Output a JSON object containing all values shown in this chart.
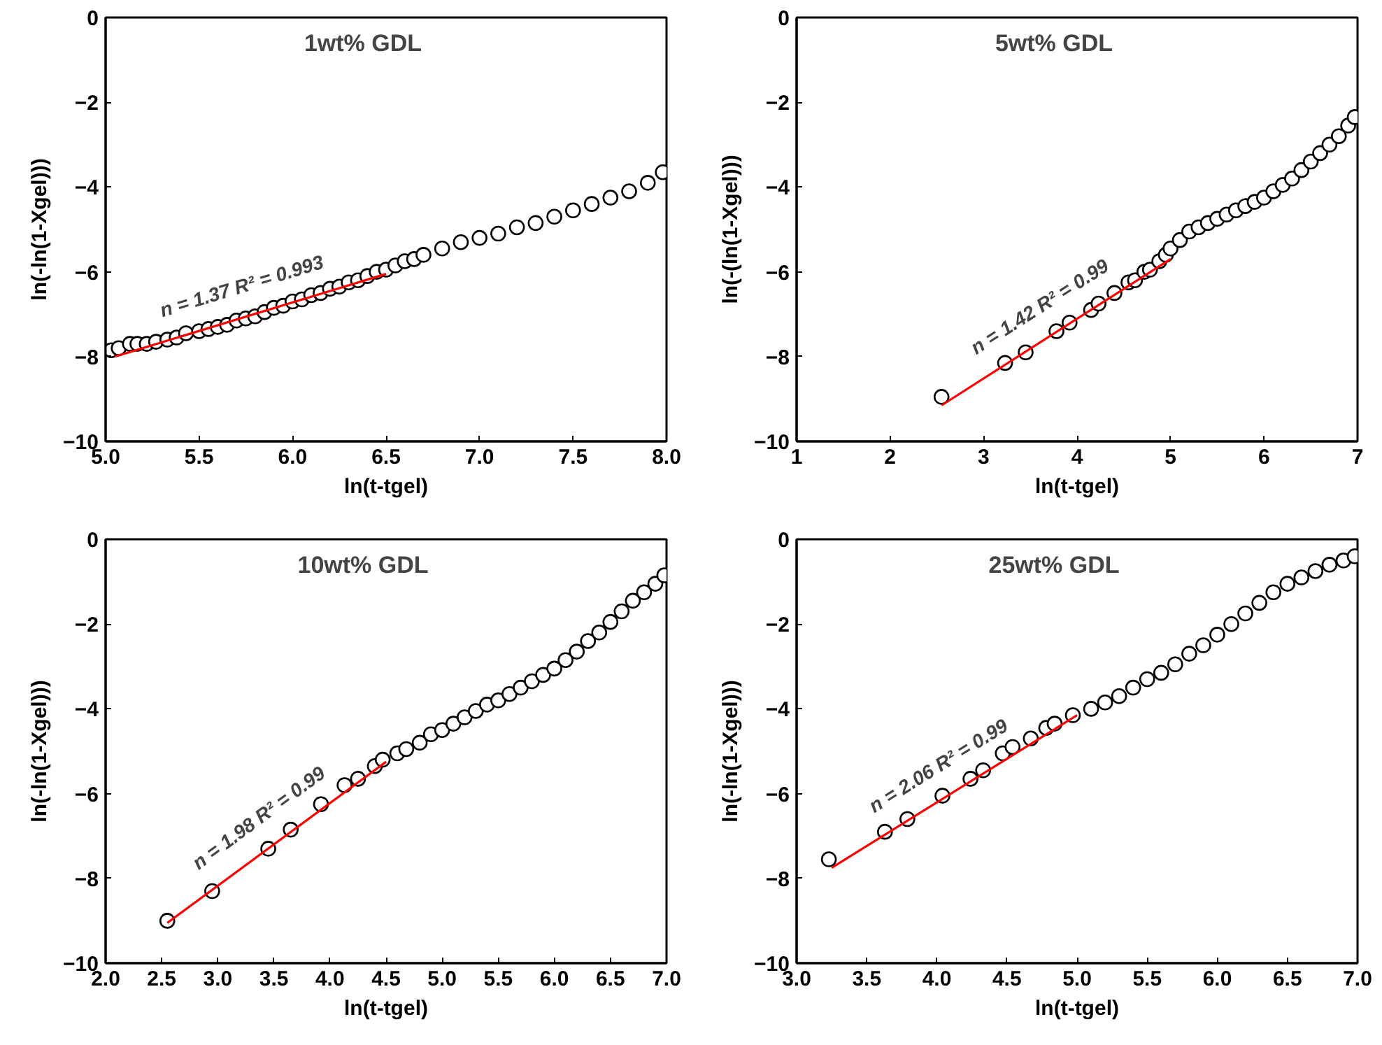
{
  "chart_data": [
    {
      "type": "scatter",
      "title": "1wt% GDL",
      "xlabel": "ln(t-tgel)",
      "ylabel": "ln(-ln(1-Xgel)))",
      "annotations": [
        "n = 1.37 R² = 0.993"
      ],
      "xlim": [
        5.0,
        8.0
      ],
      "ylim": [
        -10,
        0
      ],
      "xticks": [
        {
          "value": 5.0,
          "label": "5.0"
        },
        5.5,
        {
          "value": 6.0,
          "label": "6.0"
        },
        6.5,
        {
          "value": 7.0,
          "label": "7.0"
        },
        7.5,
        {
          "value": 8.0,
          "label": "8.0"
        }
      ],
      "yticks": [
        -10,
        -8,
        -6,
        -4,
        -2,
        0
      ],
      "series": [
        {
          "marker": "circle",
          "color": "#000000",
          "x": [
            5.03,
            5.07,
            5.13,
            5.17,
            5.22,
            5.27,
            5.33,
            5.38,
            5.43,
            5.5,
            5.55,
            5.6,
            5.65,
            5.7,
            5.75,
            5.8,
            5.85,
            5.9,
            5.95,
            6.0,
            6.05,
            6.1,
            6.15,
            6.2,
            6.25,
            6.3,
            6.35,
            6.4,
            6.45,
            6.5,
            6.55,
            6.6,
            6.65,
            6.7,
            6.8,
            6.9,
            7.0,
            7.1,
            7.2,
            7.3,
            7.4,
            7.5,
            7.6,
            7.7,
            7.8,
            7.9,
            7.98
          ],
          "values": [
            -7.85,
            -7.8,
            -7.7,
            -7.7,
            -7.7,
            -7.65,
            -7.6,
            -7.55,
            -7.45,
            -7.4,
            -7.35,
            -7.3,
            -7.25,
            -7.15,
            -7.1,
            -7.05,
            -6.95,
            -6.85,
            -6.8,
            -6.7,
            -6.65,
            -6.55,
            -6.5,
            -6.4,
            -6.35,
            -6.25,
            -6.2,
            -6.1,
            -6.0,
            -5.95,
            -5.85,
            -5.75,
            -5.7,
            -5.6,
            -5.45,
            -5.3,
            -5.2,
            -5.1,
            -4.95,
            -4.85,
            -4.7,
            -4.55,
            -4.4,
            -4.25,
            -4.1,
            -3.9,
            -3.65
          ]
        },
        {
          "type": "line",
          "color": "#ff0000",
          "x": [
            5.05,
            6.5
          ],
          "values": [
            -8.0,
            -6.05
          ]
        }
      ]
    },
    {
      "type": "scatter",
      "title": "5wt% GDL",
      "xlabel": "ln(t-tgel)",
      "ylabel": "ln(-(ln(1-Xgel)))",
      "annotations": [
        "n = 1.42 R² = 0.99"
      ],
      "xlim": [
        1,
        7
      ],
      "ylim": [
        -10,
        0
      ],
      "xticks": [
        1,
        2,
        3,
        4,
        5,
        6,
        7
      ],
      "yticks": [
        -10,
        -8,
        -6,
        -4,
        -2,
        0
      ],
      "series": [
        {
          "marker": "circle",
          "color": "#000000",
          "x": [
            2.55,
            3.23,
            3.45,
            3.78,
            3.92,
            4.15,
            4.23,
            4.4,
            4.55,
            4.62,
            4.72,
            4.78,
            4.88,
            4.95,
            5.0,
            5.1,
            5.2,
            5.3,
            5.4,
            5.5,
            5.6,
            5.7,
            5.8,
            5.9,
            6.0,
            6.1,
            6.2,
            6.3,
            6.4,
            6.5,
            6.6,
            6.7,
            6.8,
            6.9,
            6.97
          ],
          "values": [
            -8.95,
            -8.15,
            -7.9,
            -7.4,
            -7.2,
            -6.9,
            -6.75,
            -6.5,
            -6.25,
            -6.2,
            -6.0,
            -5.95,
            -5.75,
            -5.6,
            -5.45,
            -5.25,
            -5.05,
            -4.95,
            -4.85,
            -4.75,
            -4.65,
            -4.55,
            -4.45,
            -4.35,
            -4.25,
            -4.1,
            -3.95,
            -3.8,
            -3.6,
            -3.4,
            -3.2,
            -3.0,
            -2.8,
            -2.55,
            -2.35
          ]
        },
        {
          "type": "line",
          "color": "#ff0000",
          "x": [
            2.55,
            5.0
          ],
          "values": [
            -9.15,
            -5.7
          ]
        }
      ]
    },
    {
      "type": "scatter",
      "title": "10wt% GDL",
      "xlabel": "ln(t-tgel)",
      "ylabel": "ln(-ln(1-Xgel)))",
      "annotations": [
        "n = 1.98 R² = 0.99"
      ],
      "xlim": [
        2.0,
        7.0
      ],
      "ylim": [
        -10,
        0
      ],
      "xticks": [
        {
          "value": 2.0,
          "label": "2.0"
        },
        2.5,
        {
          "value": 3.0,
          "label": "3.0"
        },
        3.5,
        {
          "value": 4.0,
          "label": "4.0"
        },
        4.5,
        {
          "value": 5.0,
          "label": "5.0"
        },
        5.5,
        {
          "value": 6.0,
          "label": "6.0"
        },
        6.5,
        {
          "value": 7.0,
          "label": "7.0"
        }
      ],
      "yticks": [
        -10,
        -8,
        -6,
        -4,
        -2,
        0
      ],
      "series": [
        {
          "marker": "circle",
          "color": "#000000",
          "x": [
            2.55,
            2.95,
            3.45,
            3.65,
            3.92,
            4.13,
            4.25,
            4.4,
            4.47,
            4.6,
            4.68,
            4.8,
            4.9,
            5.0,
            5.1,
            5.2,
            5.3,
            5.4,
            5.5,
            5.6,
            5.7,
            5.8,
            5.9,
            6.0,
            6.1,
            6.2,
            6.3,
            6.4,
            6.5,
            6.6,
            6.7,
            6.8,
            6.9,
            6.98
          ],
          "values": [
            -9.0,
            -8.3,
            -7.3,
            -6.85,
            -6.25,
            -5.8,
            -5.65,
            -5.35,
            -5.2,
            -5.05,
            -4.95,
            -4.8,
            -4.6,
            -4.5,
            -4.35,
            -4.2,
            -4.05,
            -3.9,
            -3.8,
            -3.65,
            -3.5,
            -3.35,
            -3.2,
            -3.05,
            -2.85,
            -2.65,
            -2.4,
            -2.2,
            -1.95,
            -1.7,
            -1.45,
            -1.25,
            -1.05,
            -0.85
          ]
        },
        {
          "type": "line",
          "color": "#ff0000",
          "x": [
            2.55,
            4.5
          ],
          "values": [
            -9.05,
            -5.25
          ]
        }
      ]
    },
    {
      "type": "scatter",
      "title": "25wt% GDL",
      "xlabel": "ln(t-tgel)",
      "ylabel": "ln(-ln(1-Xgel)))",
      "annotations": [
        "n = 2.06 R² = 0.99"
      ],
      "xlim": [
        3.0,
        7.0
      ],
      "ylim": [
        -10,
        0
      ],
      "xticks": [
        {
          "value": 3.0,
          "label": "3.0"
        },
        3.5,
        {
          "value": 4.0,
          "label": "4.0"
        },
        4.5,
        {
          "value": 5.0,
          "label": "5.0"
        },
        5.5,
        {
          "value": 6.0,
          "label": "6.0"
        },
        6.5,
        {
          "value": 7.0,
          "label": "7.0"
        }
      ],
      "yticks": [
        -10,
        -8,
        -6,
        -4,
        -2,
        0
      ],
      "series": [
        {
          "marker": "circle",
          "color": "#000000",
          "x": [
            3.23,
            3.63,
            3.79,
            4.04,
            4.24,
            4.33,
            4.47,
            4.54,
            4.67,
            4.78,
            4.84,
            4.97,
            5.1,
            5.2,
            5.3,
            5.4,
            5.5,
            5.6,
            5.7,
            5.8,
            5.9,
            6.0,
            6.1,
            6.2,
            6.3,
            6.4,
            6.5,
            6.6,
            6.7,
            6.8,
            6.9,
            6.98
          ],
          "values": [
            -7.55,
            -6.9,
            -6.6,
            -6.05,
            -5.65,
            -5.45,
            -5.05,
            -4.9,
            -4.7,
            -4.45,
            -4.35,
            -4.15,
            -4.0,
            -3.85,
            -3.7,
            -3.5,
            -3.3,
            -3.15,
            -2.95,
            -2.7,
            -2.5,
            -2.25,
            -2.0,
            -1.75,
            -1.5,
            -1.25,
            -1.05,
            -0.9,
            -0.75,
            -0.6,
            -0.5,
            -0.4
          ]
        },
        {
          "type": "line",
          "color": "#ff0000",
          "x": [
            3.25,
            5.0
          ],
          "values": [
            -7.75,
            -4.15
          ]
        }
      ]
    }
  ]
}
